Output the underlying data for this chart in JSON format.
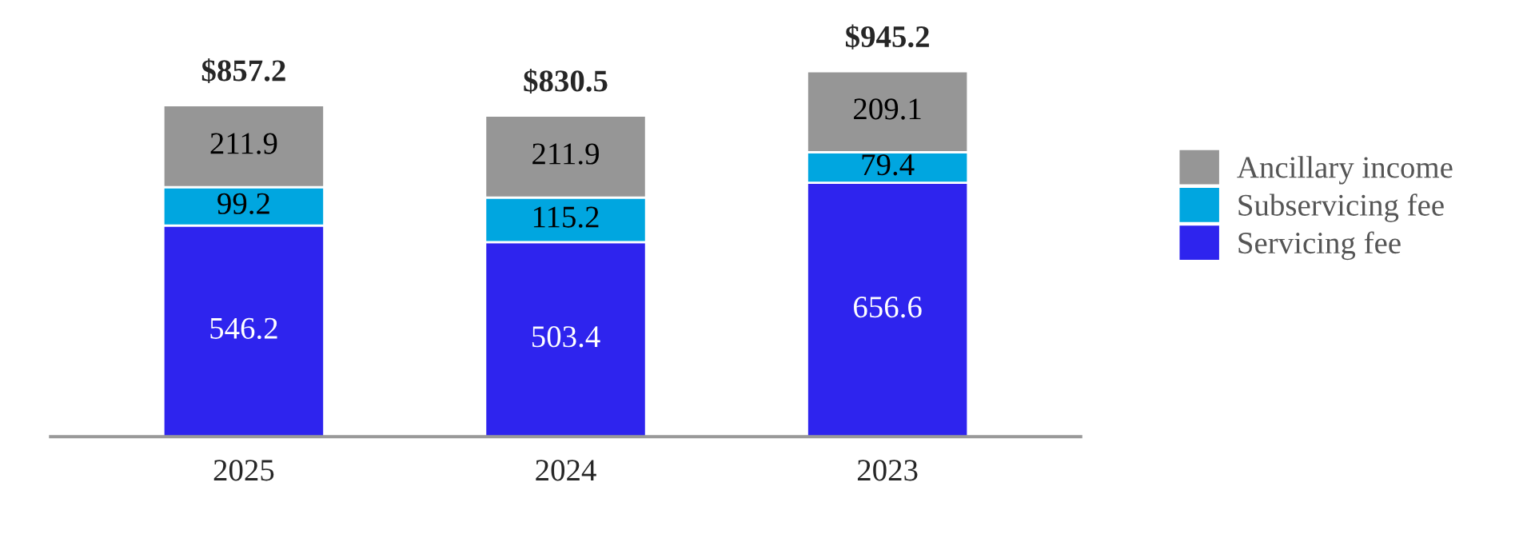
{
  "chart_data": {
    "type": "bar",
    "stacked": true,
    "categories": [
      "2025",
      "2024",
      "2023"
    ],
    "series": [
      {
        "name": "Servicing fee",
        "color": "#2e24ee",
        "values": [
          546.2,
          503.4,
          656.6
        ]
      },
      {
        "name": "Subservicing fee",
        "color": "#00a6e0",
        "values": [
          99.2,
          115.2,
          79.4
        ]
      },
      {
        "name": "Ancillary income",
        "color": "#969696",
        "values": [
          211.9,
          211.9,
          209.1
        ]
      }
    ],
    "data_labels": true,
    "totals": [
      "$857.2",
      "$830.5",
      "$945.2"
    ],
    "legend": "right",
    "tick_labels": "x",
    "grid": false
  }
}
